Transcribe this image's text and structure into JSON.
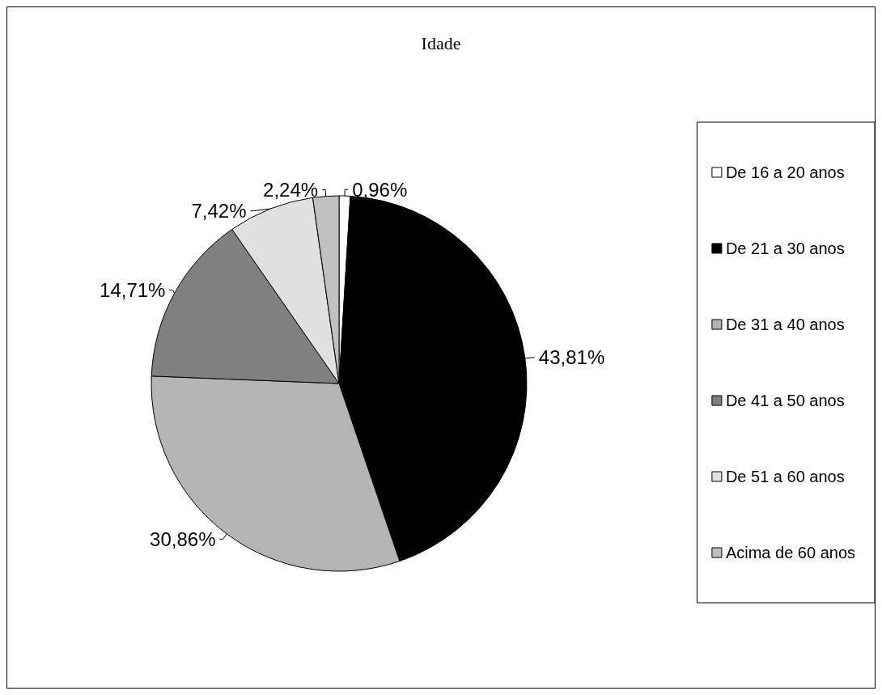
{
  "chart_data": {
    "type": "pie",
    "title": "Idade",
    "categories": [
      "De 16 a 20 anos",
      "De 21 a 30 anos",
      "De 31 a 40 anos",
      "De 41 a 50 anos",
      "De 51 a 60 anos",
      "Acima de 60 anos"
    ],
    "values": [
      0.96,
      43.81,
      30.86,
      14.71,
      7.42,
      2.24
    ],
    "value_labels": [
      "0,96%",
      "43,81%",
      "30,86%",
      "14,71%",
      "7,42%",
      "2,24%"
    ],
    "colors": [
      "#ffffff",
      "#000000",
      "#b4b4b4",
      "#808080",
      "#e0e0e0",
      "#c0c0c0"
    ],
    "legend": "right"
  }
}
